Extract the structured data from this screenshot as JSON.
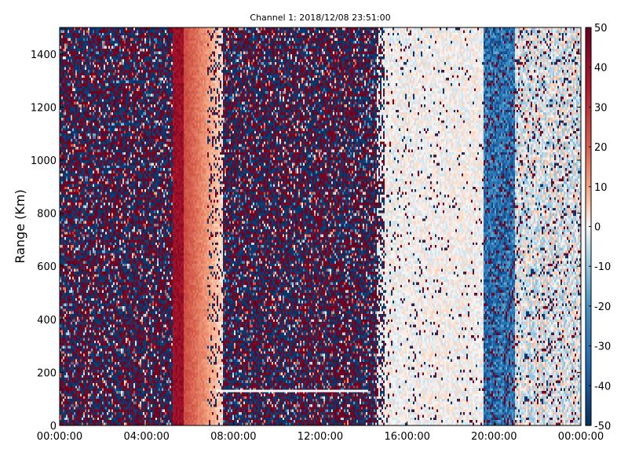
{
  "chart_data": {
    "type": "heatmap",
    "title": "Channel 1: 2018/12/08 23:51:00",
    "xlabel": "",
    "ylabel": "Range (Km)",
    "x_ticks": [
      "00:00:00",
      "04:00:00",
      "08:00:00",
      "12:00:00",
      "16:00:00",
      "20:00:00",
      "00:00:00"
    ],
    "y_ticks": [
      0,
      200,
      400,
      600,
      800,
      1000,
      1200,
      1400
    ],
    "ylim": [
      0,
      1500
    ],
    "xlim_hours": [
      0,
      24
    ],
    "colorbar": {
      "ticks": [
        50,
        40,
        30,
        20,
        10,
        0,
        -10,
        -20,
        -30,
        -40,
        -50
      ],
      "range": [
        -50,
        50
      ],
      "colormap": "diverging-red-blue",
      "color_high": "#67001f",
      "color_mid": "#f7f7f7",
      "color_low": "#053061"
    },
    "regions": [
      {
        "from_hour": 0.0,
        "to_hour": 5.2,
        "pattern": "noise",
        "description": "random +/-50 values"
      },
      {
        "from_hour": 5.2,
        "to_hour": 5.7,
        "pattern": "band",
        "value": 40
      },
      {
        "from_hour": 5.7,
        "to_hour": 7.5,
        "pattern": "fade",
        "value_start": 25,
        "value_end": 3
      },
      {
        "from_hour": 7.5,
        "to_hour": 14.6,
        "pattern": "noise"
      },
      {
        "from_hour": 14.6,
        "to_hour": 19.5,
        "pattern": "near-zero-sparse"
      },
      {
        "from_hour": 19.5,
        "to_hour": 21.0,
        "pattern": "negative",
        "value": -30
      },
      {
        "from_hour": 21.0,
        "to_hour": 24.0,
        "pattern": "mixed-sparse"
      }
    ],
    "grid": false
  }
}
